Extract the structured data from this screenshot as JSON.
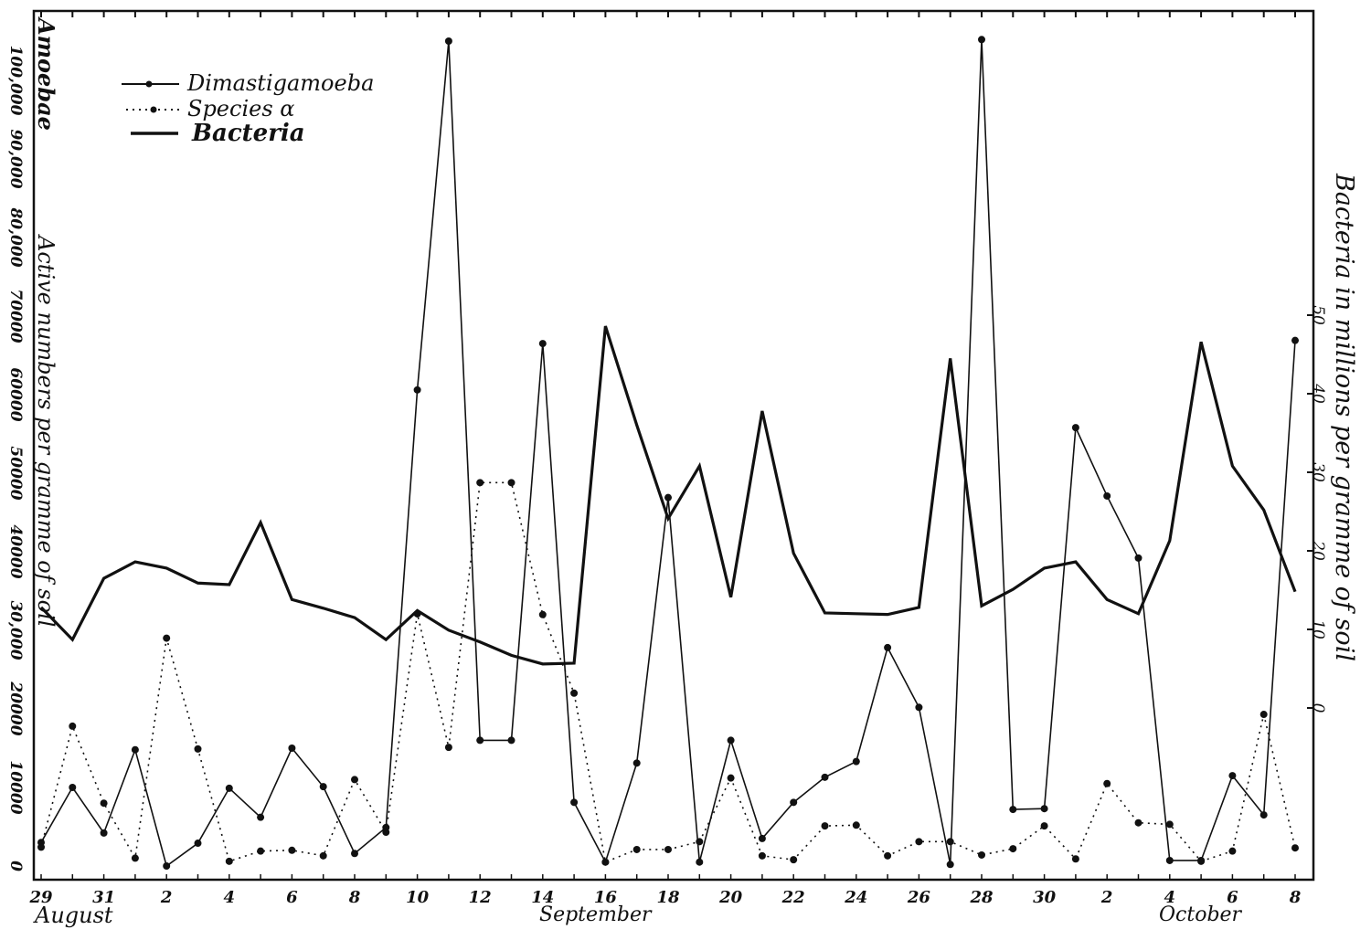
{
  "chart_data": {
    "type": "line",
    "legend": {
      "position": "top-left",
      "entries": [
        "Dimastigamoeba",
        "Species α",
        "Bacteria"
      ]
    },
    "left_axis": {
      "title_top": "Amoebae",
      "title": "Active numbers per gramme of soil",
      "ticks": [
        0,
        10000,
        20000,
        30000,
        40000,
        50000,
        60000,
        70000,
        80000,
        90000,
        100000
      ],
      "tick_labels": [
        "0",
        "10000",
        "20000",
        "30,000",
        "40000",
        "50000",
        "60000",
        "70000",
        "80,000",
        "90,000",
        "100,000"
      ],
      "ylim": [
        0,
        108000
      ]
    },
    "right_axis": {
      "title": "Bacteria in millions per gramme of soil",
      "ticks": [
        0,
        10,
        20,
        30,
        40,
        50
      ],
      "tick_labels": [
        "0",
        "10",
        "20",
        "30",
        "40",
        "50"
      ]
    },
    "x_axis": {
      "tick_labels": [
        "29",
        "31",
        "2",
        "4",
        "6",
        "8",
        "10",
        "12",
        "14",
        "16",
        "18",
        "20",
        "22",
        "24",
        "26",
        "28",
        "30",
        "2",
        "4",
        "6",
        "8"
      ],
      "months": [
        "August",
        "September",
        "October"
      ]
    },
    "x": [
      "Aug 29",
      "Aug 30",
      "Aug 31",
      "Sep 1",
      "Sep 2",
      "Sep 3",
      "Sep 4",
      "Sep 5",
      "Sep 6",
      "Sep 7",
      "Sep 8",
      "Sep 9",
      "Sep 10",
      "Sep 11",
      "Sep 12",
      "Sep 13",
      "Sep 14",
      "Sep 15",
      "Sep 16",
      "Sep 17",
      "Sep 18",
      "Sep 19",
      "Sep 20",
      "Sep 21",
      "Sep 22",
      "Sep 23",
      "Sep 24",
      "Sep 25",
      "Sep 26",
      "Sep 27",
      "Sep 28",
      "Sep 29",
      "Sep 30",
      "Oct 1",
      "Oct 2",
      "Oct 3",
      "Oct 4",
      "Oct 5",
      "Oct 6",
      "Oct 7",
      "Oct 8"
    ],
    "series": [
      {
        "name": "Dimastigamoeba",
        "axis": "left",
        "style": "thin-solid-dots",
        "values": [
          3000,
          10000,
          4200,
          14800,
          0,
          2900,
          9900,
          6200,
          15000,
          10100,
          1600,
          4900,
          60600,
          105000,
          16000,
          16000,
          66500,
          8100,
          500,
          13100,
          46900,
          500,
          16000,
          3500,
          8100,
          11300,
          13300,
          27800,
          20200,
          200,
          105200,
          7200,
          7300,
          55800,
          47100,
          39200,
          700,
          700,
          11500,
          6500,
          66900
        ]
      },
      {
        "name": "Species α",
        "axis": "left",
        "style": "dotted-dots",
        "values": [
          2400,
          17800,
          8000,
          1000,
          29000,
          14900,
          600,
          1900,
          2000,
          1300,
          11000,
          4300,
          32100,
          15100,
          48800,
          48800,
          32000,
          22000,
          500,
          2100,
          2100,
          3100,
          11200,
          1300,
          800,
          5100,
          5200,
          1300,
          3100,
          3100,
          1400,
          2200,
          5100,
          900,
          10500,
          5500,
          5300,
          600,
          1900,
          19300,
          2300
        ]
      },
      {
        "name": "Bacteria",
        "axis": "right",
        "style": "thick-solid",
        "values": [
          12.8,
          8.7,
          16.5,
          18.6,
          17.8,
          15.9,
          15.7,
          23.6,
          13.8,
          12.7,
          11.5,
          8.7,
          12.4,
          9.9,
          8.4,
          6.7,
          5.6,
          5.7,
          48.6,
          36.0,
          24.1,
          30.8,
          14.1,
          37.8,
          19.7,
          12.1,
          12.0,
          11.9,
          12.8,
          44.5,
          13.0,
          15.1,
          17.8,
          18.6,
          13.8,
          12.0,
          21.3,
          46.6,
          30.8,
          25.2,
          14.8
        ]
      }
    ]
  }
}
